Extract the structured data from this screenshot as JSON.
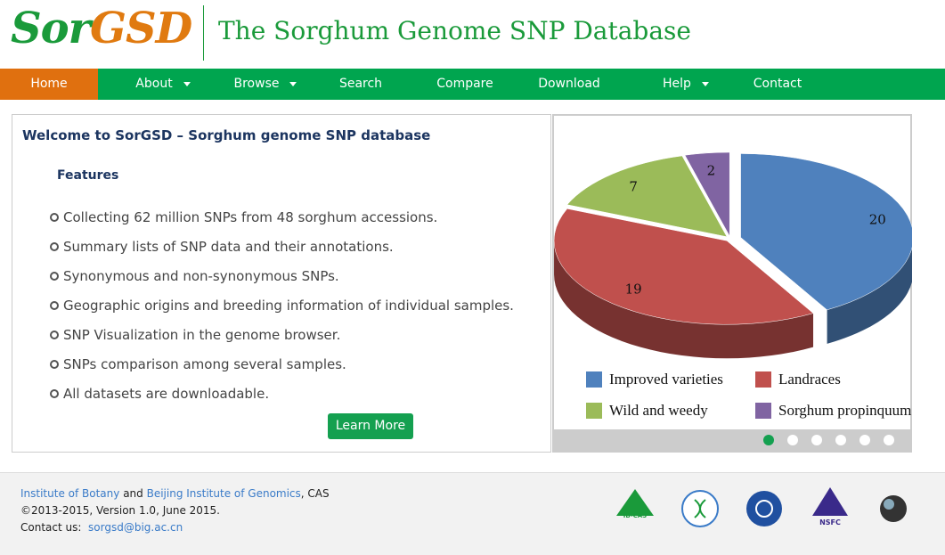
{
  "header": {
    "logo": {
      "part1": "Sor",
      "part2": "GSD"
    },
    "title": "The Sorghum Genome SNP Database"
  },
  "nav": [
    {
      "label": "Home",
      "active": true
    },
    {
      "label": "About",
      "dropdown": true
    },
    {
      "label": "Browse",
      "dropdown": true
    },
    {
      "label": "Search"
    },
    {
      "label": "Compare"
    },
    {
      "label": "Download"
    },
    {
      "label": "Help",
      "dropdown": true
    },
    {
      "label": "Contact"
    }
  ],
  "welcome": {
    "heading": "Welcome to SorGSD – Sorghum genome SNP database",
    "subheading": "Features",
    "features": [
      "Collecting 62 million SNPs from 48 sorghum accessions.",
      "Summary lists of SNP data and their annotations.",
      "Synonymous and non-synonymous SNPs.",
      "Geographic origins and breeding information of individual samples.",
      "SNP Visualization in the genome browser.",
      "SNPs comparison among several samples.",
      "All datasets are downloadable."
    ],
    "button": "Learn More"
  },
  "carousel": {
    "chart": {
      "type": "pie",
      "categories": [
        "Improved varieties",
        "Landraces",
        "Wild and weedy",
        "Sorghum propinquum"
      ],
      "values": [
        20,
        19,
        7,
        2
      ],
      "colors": [
        "#4f81bd",
        "#c0504d",
        "#9bbb59",
        "#8064a2"
      ]
    },
    "slides": 6,
    "active_slide": 0
  },
  "footer": {
    "line1": [
      "Institute of Botany",
      " and ",
      "Beijing Institute of Genomics",
      ", CAS"
    ],
    "line2": "©2013-2015, Version 1.0, June 2015.",
    "contact_label": "Contact us:",
    "contact_email": "sorgsd@big.ac.cn",
    "logos": [
      "IB-CAS",
      "NSFC"
    ]
  }
}
